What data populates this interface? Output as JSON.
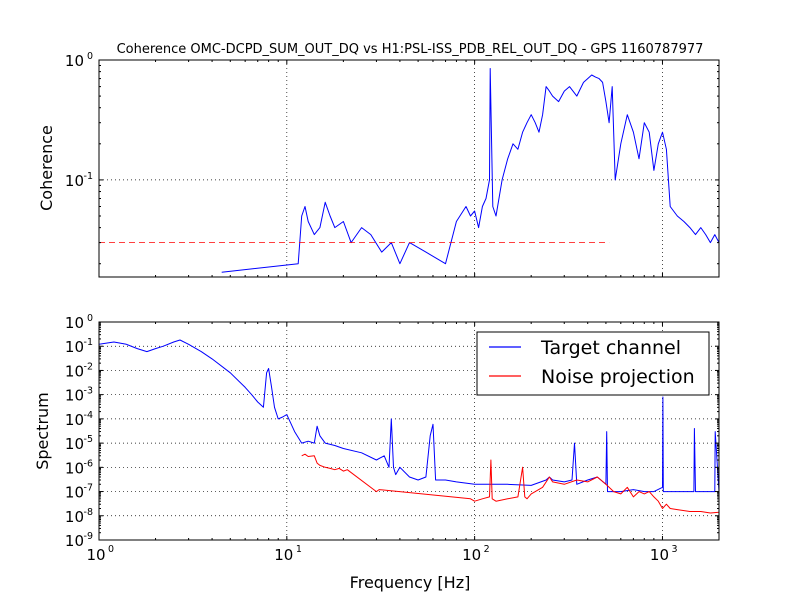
{
  "colors": {
    "target": "#0000ff",
    "noise": "#ff0000",
    "threshold": "#ff0000",
    "axes": "#000000",
    "grid": "#000000",
    "background": "#ffffff"
  },
  "chart_data": [
    {
      "type": "line",
      "title": "Coherence OMC-DCPD_SUM_OUT_DQ vs H1:PSL-ISS_PDB_REL_OUT_DQ - GPS 1160787977",
      "xlabel": "",
      "ylabel": "Coherence",
      "xscale": "log",
      "yscale": "log",
      "xlim": [
        1,
        2000
      ],
      "ylim": [
        0.0155,
        1
      ],
      "xtick_labels": [],
      "ytick_labels": [
        {
          "base": "10",
          "exp": "0",
          "value": 1
        },
        {
          "base": "10",
          "exp": "-1",
          "value": 0.1
        }
      ],
      "grid": true,
      "series": [
        {
          "name": "",
          "color": "#0000ff",
          "x": [
            4.5,
            11.5,
            12.0,
            12.5,
            13.0,
            14.0,
            15.0,
            16.0,
            17.0,
            18.0,
            20.0,
            22.0,
            25.0,
            28.0,
            32.0,
            36.0,
            40.0,
            45.0,
            55.0,
            70.0,
            80.0,
            90.0,
            95.0,
            100.0,
            105.0,
            110.0,
            115.0,
            120.0,
            121.0,
            125.0,
            130.0,
            140.0,
            150.0,
            160.0,
            170.0,
            180.0,
            190.0,
            200.0,
            210.0,
            220.0,
            230.0,
            240.0,
            250.0,
            260.0,
            280.0,
            300.0,
            320.0,
            350.0,
            380.0,
            400.0,
            420.0,
            440.0,
            460.0,
            480.0,
            500.0,
            520.0,
            540.0,
            560.0,
            600.0,
            650.0,
            700.0,
            750.0,
            800.0,
            850.0,
            900.0,
            950.0,
            1000.0,
            1050.0,
            1100.0,
            1200.0,
            1300.0,
            1400.0,
            1500.0,
            1600.0,
            1700.0,
            1800.0,
            1900.0,
            2000.0
          ],
          "y": [
            0.017,
            0.02,
            0.05,
            0.06,
            0.045,
            0.035,
            0.04,
            0.065,
            0.05,
            0.04,
            0.045,
            0.03,
            0.04,
            0.035,
            0.025,
            0.03,
            0.02,
            0.03,
            0.025,
            0.02,
            0.045,
            0.06,
            0.05,
            0.055,
            0.04,
            0.06,
            0.07,
            0.1,
            0.85,
            0.06,
            0.05,
            0.1,
            0.15,
            0.2,
            0.18,
            0.25,
            0.3,
            0.35,
            0.3,
            0.25,
            0.35,
            0.6,
            0.55,
            0.5,
            0.45,
            0.55,
            0.6,
            0.5,
            0.65,
            0.7,
            0.75,
            0.72,
            0.7,
            0.65,
            0.45,
            0.3,
            0.6,
            0.1,
            0.2,
            0.35,
            0.25,
            0.15,
            0.3,
            0.25,
            0.12,
            0.2,
            0.25,
            0.18,
            0.06,
            0.05,
            0.045,
            0.04,
            0.035,
            0.04,
            0.035,
            0.03,
            0.035,
            0.03
          ]
        },
        {
          "name": "",
          "color": "#ff0000",
          "style": "dashed",
          "x": [
            1,
            520
          ],
          "y": [
            0.03,
            0.03
          ]
        }
      ]
    },
    {
      "type": "line",
      "title": "",
      "xlabel": "Frequency [Hz]",
      "ylabel": "Spectrum",
      "xscale": "log",
      "yscale": "log",
      "xlim": [
        1,
        2000
      ],
      "ylim": [
        1e-09,
        1
      ],
      "xtick_labels": [
        {
          "base": "10",
          "exp": "0",
          "value": 1
        },
        {
          "base": "10",
          "exp": "1",
          "value": 10
        },
        {
          "base": "10",
          "exp": "2",
          "value": 100
        },
        {
          "base": "10",
          "exp": "3",
          "value": 1000
        }
      ],
      "ytick_labels": [
        {
          "base": "10",
          "exp": "0",
          "value": 1
        },
        {
          "base": "10",
          "exp": "-1",
          "value": 0.1
        },
        {
          "base": "10",
          "exp": "-2",
          "value": 0.01
        },
        {
          "base": "10",
          "exp": "-3",
          "value": 0.001
        },
        {
          "base": "10",
          "exp": "-4",
          "value": 0.0001
        },
        {
          "base": "10",
          "exp": "-5",
          "value": 1e-05
        },
        {
          "base": "10",
          "exp": "-6",
          "value": 1e-06
        },
        {
          "base": "10",
          "exp": "-7",
          "value": 1e-07
        },
        {
          "base": "10",
          "exp": "-8",
          "value": 1e-08
        },
        {
          "base": "10",
          "exp": "-9",
          "value": 1e-09
        }
      ],
      "grid": true,
      "legend": {
        "placement": "top-right"
      },
      "series": [
        {
          "name": "Target channel",
          "color": "#0000ff",
          "x": [
            1.0,
            1.2,
            1.4,
            1.6,
            1.8,
            2.0,
            2.2,
            2.5,
            2.7,
            3.0,
            3.5,
            4.0,
            5.0,
            6.0,
            6.5,
            7.0,
            7.5,
            7.8,
            8.0,
            8.3,
            8.6,
            9.0,
            9.5,
            10.0,
            11.0,
            12.0,
            13.0,
            14.0,
            14.5,
            15.0,
            16.0,
            18.0,
            20.0,
            25.0,
            30.0,
            33.0,
            35.0,
            36.0,
            37.0,
            38.0,
            40.0,
            45.0,
            50.0,
            55.0,
            58.0,
            60.0,
            62.0,
            70.0,
            80.0,
            100.0,
            120.0,
            150.0,
            200.0,
            240.0,
            250.0,
            260.0,
            300.0,
            330.0,
            340.0,
            350.0,
            400.0,
            450.0,
            500.0,
            505.0,
            510.0,
            550.0,
            600.0,
            700.0,
            800.0,
            900.0,
            1000.0,
            1005.0,
            1010.0,
            1100.0,
            1200.0,
            1400.0,
            1470.0,
            1480.0,
            1500.0,
            1600.0,
            1800.0,
            1900.0,
            1910.0,
            2000.0
          ],
          "y": [
            0.12,
            0.15,
            0.12,
            0.08,
            0.06,
            0.08,
            0.1,
            0.15,
            0.18,
            0.12,
            0.06,
            0.03,
            0.008,
            0.002,
            0.001,
            0.0005,
            0.0003,
            0.008,
            0.012,
            0.002,
            0.0003,
            0.0001,
            0.00012,
            0.00015,
            3e-05,
            1e-05,
            1.2e-05,
            1e-05,
            5e-05,
            2e-05,
            1e-05,
            8e-06,
            6e-06,
            4e-06,
            2e-06,
            3e-06,
            1e-06,
            0.0001,
            1e-06,
            5e-07,
            1e-06,
            4e-07,
            3e-07,
            4e-07,
            2e-05,
            6e-05,
            3e-07,
            3e-07,
            2.5e-07,
            2e-07,
            2e-07,
            2e-07,
            1.8e-07,
            3e-07,
            4e-07,
            3e-07,
            2.5e-07,
            3e-07,
            1e-05,
            2e-07,
            3e-07,
            4e-07,
            2e-07,
            3e-05,
            1e-07,
            1e-07,
            1e-07,
            1.2e-07,
            1e-07,
            1e-07,
            1.5e-07,
            0.0008,
            1e-07,
            1e-07,
            1e-07,
            1e-07,
            1e-07,
            4e-05,
            1e-07,
            1e-07,
            1e-07,
            1e-07,
            3e-05,
            1e-07
          ]
        },
        {
          "name": "Noise projection",
          "color": "#ff0000",
          "x": [
            12.0,
            12.5,
            13.0,
            14.0,
            14.5,
            15.0,
            16.0,
            17.0,
            18.0,
            19.0,
            20.0,
            21.0,
            30.0,
            31.0,
            95.0,
            100.0,
            110.0,
            120.0,
            122.0,
            124.0,
            130.0,
            150.0,
            170.0,
            180.0,
            185.0,
            190.0,
            200.0,
            230.0,
            250.0,
            260.0,
            300.0,
            350.0,
            400.0,
            450.0,
            500.0,
            550.0,
            600.0,
            650.0,
            700.0,
            750.0,
            800.0,
            850.0,
            900.0,
            950.0,
            1000.0,
            1050.0,
            1100.0,
            1200.0,
            1400.0,
            1600.0,
            1800.0,
            2000.0
          ],
          "y": [
            3e-06,
            3.5e-06,
            2.8e-06,
            3e-06,
            1.5e-06,
            1.2e-06,
            1e-06,
            9e-07,
            8e-07,
            9e-07,
            7e-07,
            8e-07,
            1e-07,
            1.2e-07,
            5e-08,
            4e-08,
            5e-08,
            6e-08,
            2e-06,
            5e-08,
            4e-08,
            5e-08,
            6e-08,
            1e-06,
            6e-08,
            5e-08,
            8e-08,
            1.5e-07,
            4e-07,
            2.5e-07,
            2e-07,
            3e-07,
            2.5e-07,
            4e-07,
            2e-07,
            1e-07,
            8e-08,
            1.5e-07,
            6e-08,
            1e-07,
            8e-08,
            1e-07,
            6e-08,
            4e-08,
            2e-08,
            3e-08,
            2e-08,
            1.8e-08,
            1.5e-08,
            1.5e-08,
            1.3e-08,
            1.4e-08
          ]
        }
      ]
    }
  ]
}
